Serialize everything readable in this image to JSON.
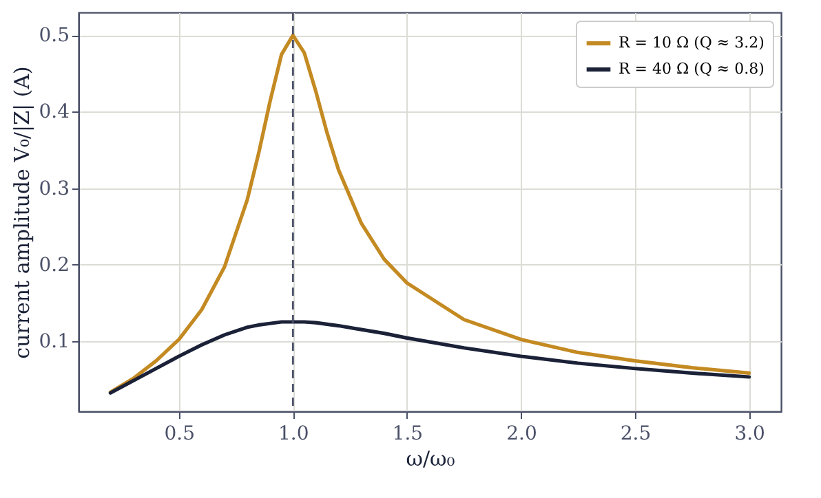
{
  "chart_data": {
    "type": "line",
    "xlabel": "ω/ω₀",
    "ylabel": "current amplitude V₀/|Z| (A)",
    "x": [
      0.2,
      0.3,
      0.4,
      0.5,
      0.6,
      0.7,
      0.8,
      0.85,
      0.9,
      0.95,
      1.0,
      1.05,
      1.1,
      1.15,
      1.2,
      1.3,
      1.4,
      1.5,
      1.75,
      2.0,
      2.25,
      2.5,
      2.75,
      3.0
    ],
    "series": [
      {
        "name": "R = 10 Ω (Q ≈ 3.2)",
        "color": "#c48a22",
        "values": [
          0.033,
          0.051,
          0.074,
          0.102,
          0.141,
          0.197,
          0.285,
          0.346,
          0.414,
          0.475,
          0.5,
          0.477,
          0.427,
          0.372,
          0.324,
          0.254,
          0.207,
          0.176,
          0.128,
          0.102,
          0.085,
          0.074,
          0.065,
          0.058
        ]
      },
      {
        "name": "R = 40 Ω (Q ≈ 0.8)",
        "color": "#1b2238",
        "values": [
          0.032,
          0.048,
          0.064,
          0.08,
          0.095,
          0.108,
          0.118,
          0.121,
          0.123,
          0.125,
          0.125,
          0.125,
          0.124,
          0.122,
          0.12,
          0.115,
          0.11,
          0.104,
          0.091,
          0.08,
          0.071,
          0.064,
          0.058,
          0.053
        ]
      }
    ],
    "xlim": [
      0.06,
      3.14
    ],
    "xticks": [
      0.5,
      {
        "value": 1,
        "label": "1.0"
      },
      1.5,
      {
        "value": 2,
        "label": "2.0"
      },
      2.5,
      {
        "value": 3,
        "label": "3.0"
      }
    ],
    "ylim": [
      0.008,
      0.53
    ],
    "yticks": [
      0.1,
      0.2,
      0.3,
      0.4,
      0.5
    ],
    "ref_lines": [
      {
        "axis": "x",
        "value": 1.0,
        "color": "#4a5068",
        "line_style": "dashed"
      }
    ],
    "grid": true,
    "legend": "top right",
    "line_style": "solid",
    "marker": "none"
  }
}
